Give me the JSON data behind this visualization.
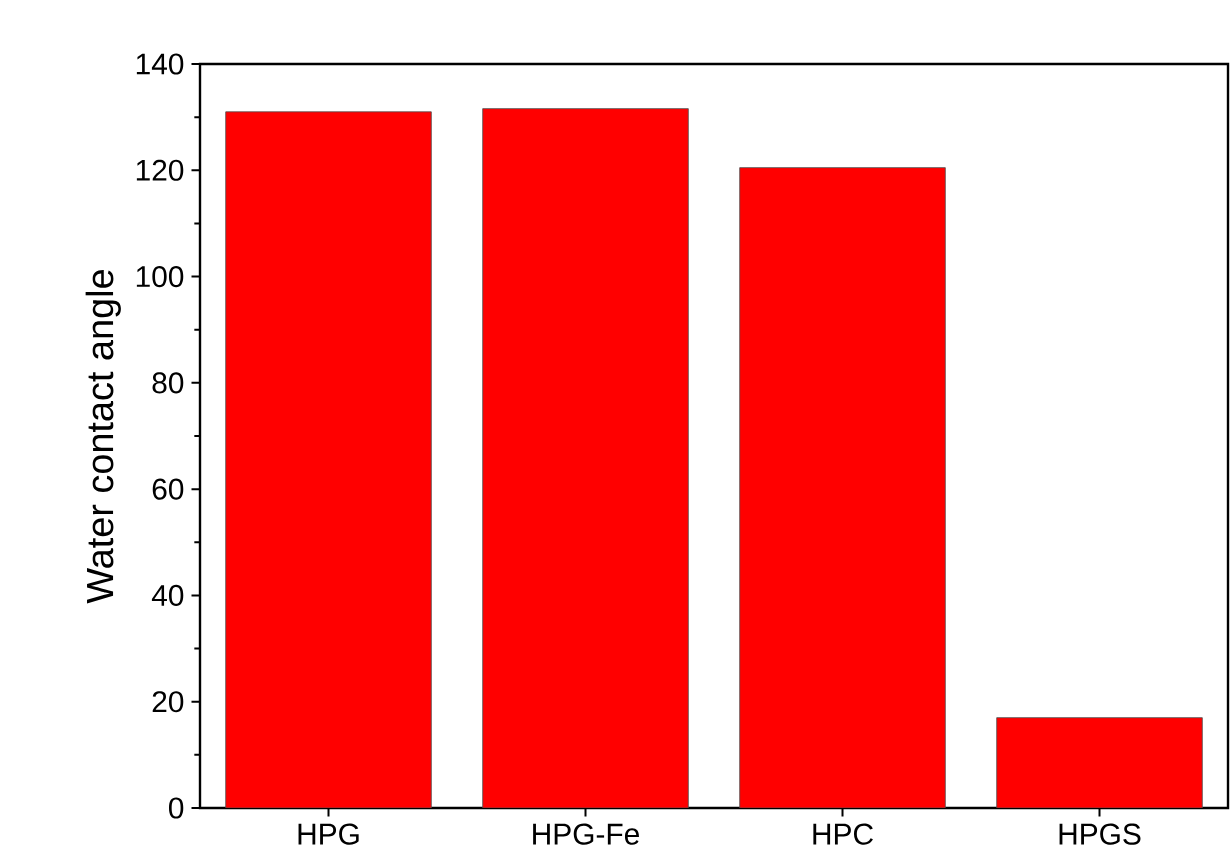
{
  "chart_data": {
    "type": "bar",
    "ylabel": "Water contact angle",
    "categories": [
      "HPG",
      "HPG-Fe",
      "HPC",
      "HPGS"
    ],
    "values": [
      131.0,
      131.6,
      120.5,
      17.0
    ],
    "color": "#ff0000",
    "ylim": [
      0,
      140
    ],
    "yticks": [
      0,
      20,
      40,
      60,
      80,
      100,
      120,
      140
    ],
    "grid": false
  }
}
